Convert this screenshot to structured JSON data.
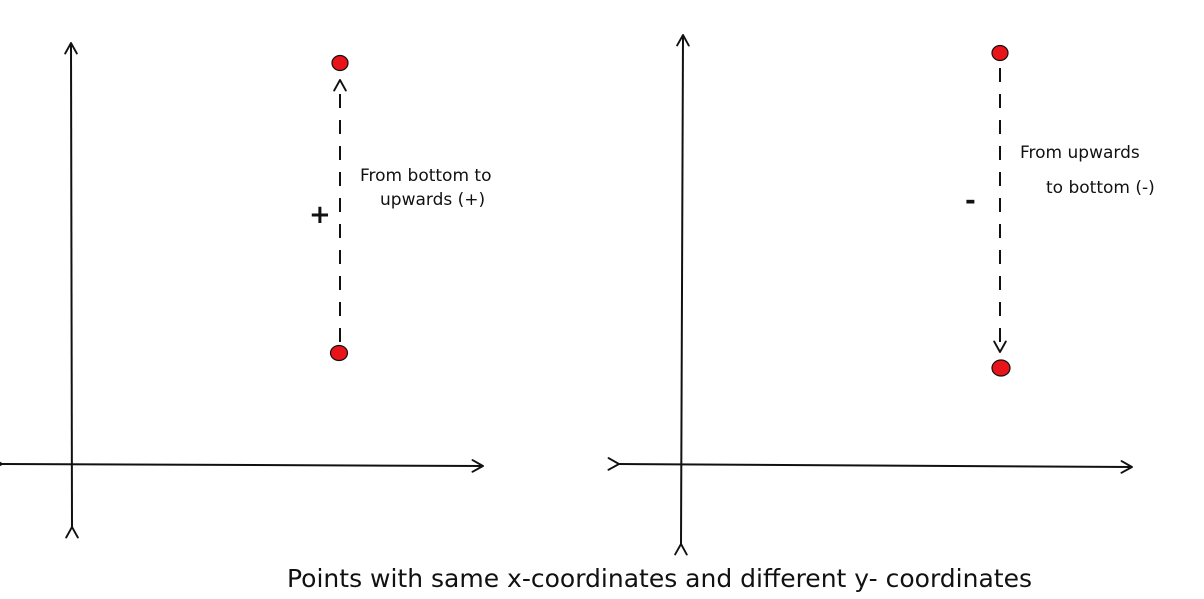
{
  "colors": {
    "ink": "#111111",
    "point": "#e8141a",
    "background": "#ffffff"
  },
  "left_panel": {
    "label_line1": "From bottom to",
    "label_line2": "upwards (+)",
    "sign": "+",
    "direction": "up"
  },
  "right_panel": {
    "label_line1": "From upwards",
    "label_line2": "to bottom (-)",
    "sign": "-",
    "direction": "down"
  },
  "caption": "Points with same x-coordinates and different y- coordinates"
}
